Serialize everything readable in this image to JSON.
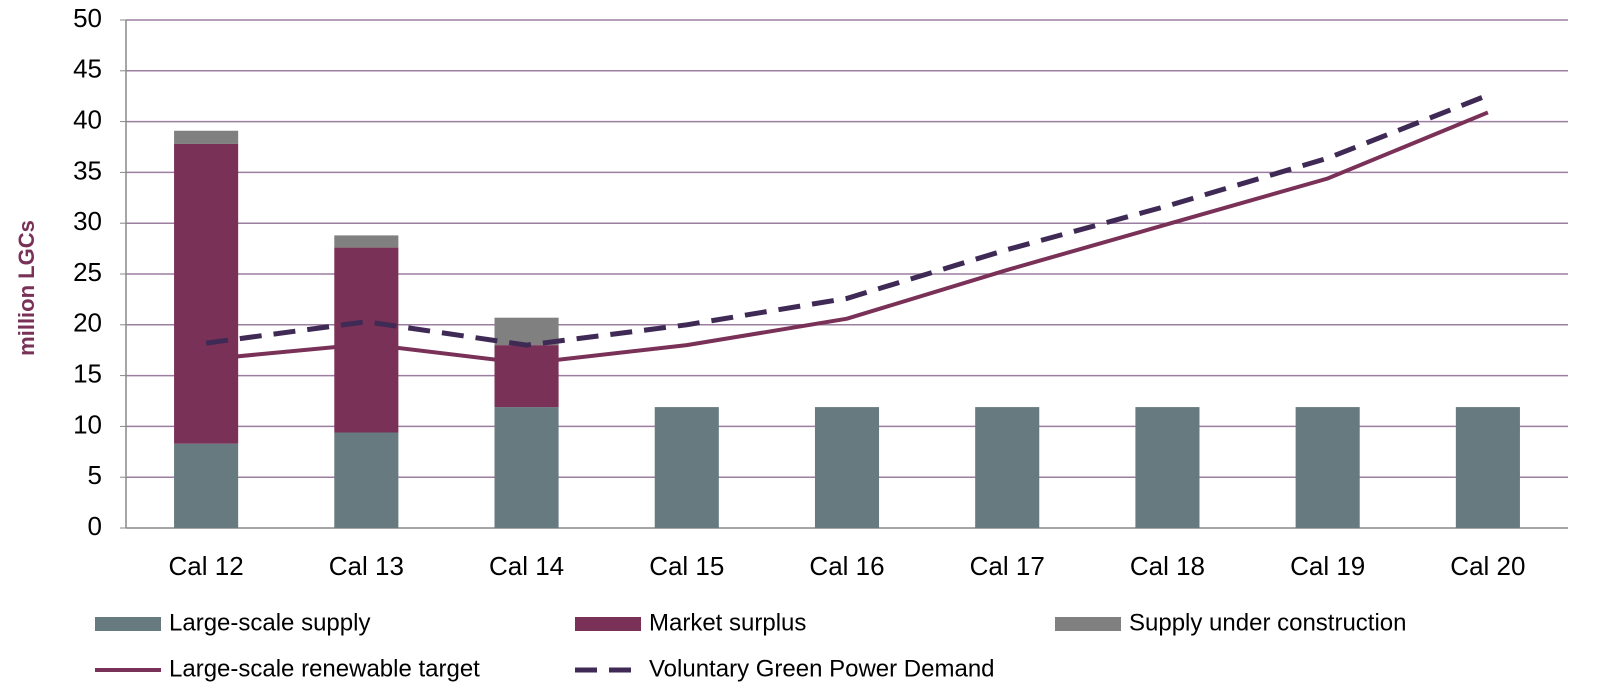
{
  "chart_data": {
    "type": "bar",
    "stacked": true,
    "y_label": "million LGCs",
    "categories": [
      "Cal 12",
      "Cal 13",
      "Cal 14",
      "Cal 15",
      "Cal 16",
      "Cal 17",
      "Cal 18",
      "Cal 19",
      "Cal 20"
    ],
    "ylim": [
      0,
      50
    ],
    "yticks": [
      0,
      5,
      10,
      15,
      20,
      25,
      30,
      35,
      40,
      45,
      50
    ],
    "grid": true,
    "legend": "bottom",
    "series": [
      {
        "name": "Large-scale supply",
        "type": "bar",
        "color": "#667a80",
        "values": [
          8.3,
          9.4,
          11.9,
          11.9,
          11.9,
          11.9,
          11.9,
          11.9,
          11.9
        ]
      },
      {
        "name": "Market surplus",
        "type": "bar",
        "color": "#7a3157",
        "values": [
          29.5,
          18.2,
          6.1,
          null,
          null,
          null,
          null,
          null,
          null
        ]
      },
      {
        "name": "Supply under construction",
        "type": "bar",
        "color": "#808080",
        "values": [
          1.3,
          1.2,
          2.7,
          null,
          null,
          null,
          null,
          null,
          null
        ]
      },
      {
        "name": "Large-scale renewable target",
        "type": "line",
        "color": "#7a3157",
        "dashed": false,
        "values": [
          16.6,
          18.1,
          16.2,
          18.0,
          20.6,
          25.4,
          29.9,
          34.4,
          40.9
        ]
      },
      {
        "name": "Voluntary Green Power Demand",
        "type": "line",
        "color": "#3f2a55",
        "dashed": true,
        "values": [
          18.2,
          20.3,
          18.0,
          20.0,
          22.6,
          27.4,
          31.7,
          36.4,
          42.6
        ]
      }
    ]
  }
}
